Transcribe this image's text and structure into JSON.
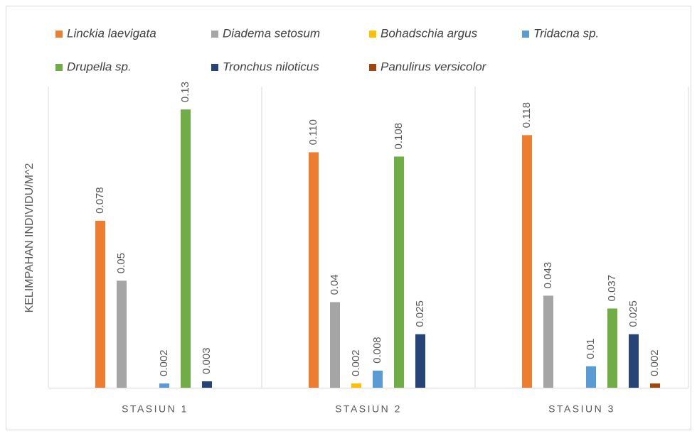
{
  "chart_data": {
    "type": "bar",
    "axis_label_y": "KELIMPAHAN INDIVIDU/M^2",
    "categories": [
      "STASIUN 1",
      "STASIUN 2",
      "STASIUN 3"
    ],
    "ylim": [
      0,
      0.14
    ],
    "series": [
      {
        "name": "Linckia laevigata",
        "color": "#ed7d31",
        "values": [
          0.078,
          0.11,
          0.118
        ],
        "value_labels": [
          "0.078",
          "0.110",
          "0.118"
        ]
      },
      {
        "name": "Diadema setosum",
        "color": "#a5a5a5",
        "values": [
          0.05,
          0.04,
          0.043
        ],
        "value_labels": [
          "0.05",
          "0.04",
          "0.043"
        ]
      },
      {
        "name": "Bohadschia argus",
        "color": "#ffc000",
        "values": [
          null,
          0.002,
          null
        ],
        "value_labels": [
          null,
          "0.002",
          null
        ]
      },
      {
        "name": "Tridacna sp.",
        "color": "#5b9bd5",
        "values": [
          0.002,
          0.008,
          0.01
        ],
        "value_labels": [
          "0.002",
          "0.008",
          "0.01"
        ]
      },
      {
        "name": "Drupella sp.",
        "color": "#70ad47",
        "values": [
          0.13,
          0.108,
          0.037
        ],
        "value_labels": [
          "0.13",
          "0.108",
          "0.037"
        ]
      },
      {
        "name": "Tronchus niloticus",
        "color": "#264478",
        "values": [
          0.003,
          0.025,
          0.025
        ],
        "value_labels": [
          "0.003",
          "0.025",
          "0.025"
        ]
      },
      {
        "name": "Panulirus versicolor",
        "color": "#9e480e",
        "values": [
          null,
          null,
          0.002
        ],
        "value_labels": [
          null,
          null,
          "0.002"
        ]
      }
    ]
  }
}
